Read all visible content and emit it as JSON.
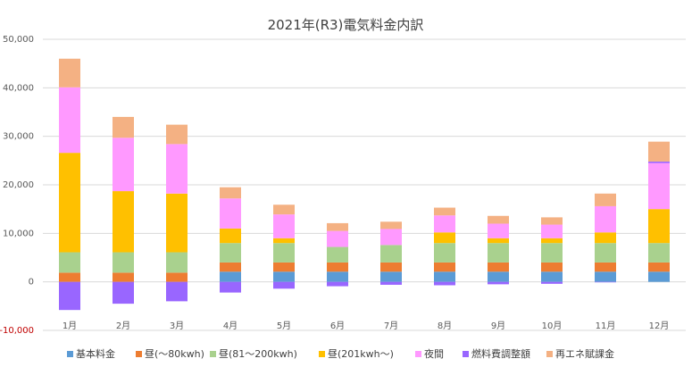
{
  "chart_data": {
    "type": "bar",
    "stacked": true,
    "title": "2021年(R3)電気料金内訳",
    "categories": [
      "1月",
      "2月",
      "3月",
      "4月",
      "5月",
      "6月",
      "7月",
      "8月",
      "9月",
      "10月",
      "11月",
      "12月"
    ],
    "ylim": [
      -10000,
      50000
    ],
    "yticks": [
      "-10,000",
      "0",
      "10,000",
      "20,000",
      "30,000",
      "40,000",
      "50,000"
    ],
    "ytick_values": [
      -10000,
      0,
      10000,
      20000,
      30000,
      40000,
      50000
    ],
    "grid": true,
    "legend_position": "bottom",
    "series": [
      {
        "name": "基本料金",
        "color": "#5b9bd5",
        "values": [
          0,
          0,
          0,
          2100,
          2100,
          2100,
          2100,
          2100,
          2100,
          2100,
          2100,
          2100
        ]
      },
      {
        "name": "昼(〜80kwh)",
        "color": "#ed7d31",
        "values": [
          1900,
          1900,
          1900,
          1900,
          1900,
          1900,
          1900,
          1900,
          1900,
          1900,
          1900,
          1900
        ]
      },
      {
        "name": "昼(81〜200kwh)",
        "color": "#a9d18e",
        "values": [
          4200,
          4200,
          4200,
          4000,
          4000,
          3200,
          3600,
          4000,
          4000,
          4000,
          4000,
          4000
        ]
      },
      {
        "name": "昼(201kwh〜)",
        "color": "#ffc000",
        "values": [
          20500,
          12600,
          12100,
          3000,
          1000,
          0,
          0,
          2200,
          1000,
          1000,
          2200,
          7000
        ]
      },
      {
        "name": "夜間",
        "color": "#ff99ff",
        "values": [
          13500,
          11000,
          10200,
          6200,
          4900,
          3300,
          3300,
          3500,
          3000,
          2800,
          5400,
          9500
        ]
      },
      {
        "name": "燃料費調整額",
        "color": "#9966ff",
        "values": [
          -5800,
          -4500,
          -4000,
          -2200,
          -1400,
          -900,
          -600,
          -700,
          -500,
          -400,
          -100,
          300
        ]
      },
      {
        "name": "再エネ賦課金",
        "color": "#f4b183",
        "values": [
          5900,
          4300,
          4000,
          2300,
          2000,
          1600,
          1500,
          1600,
          1600,
          1500,
          2600,
          4100
        ]
      }
    ]
  }
}
